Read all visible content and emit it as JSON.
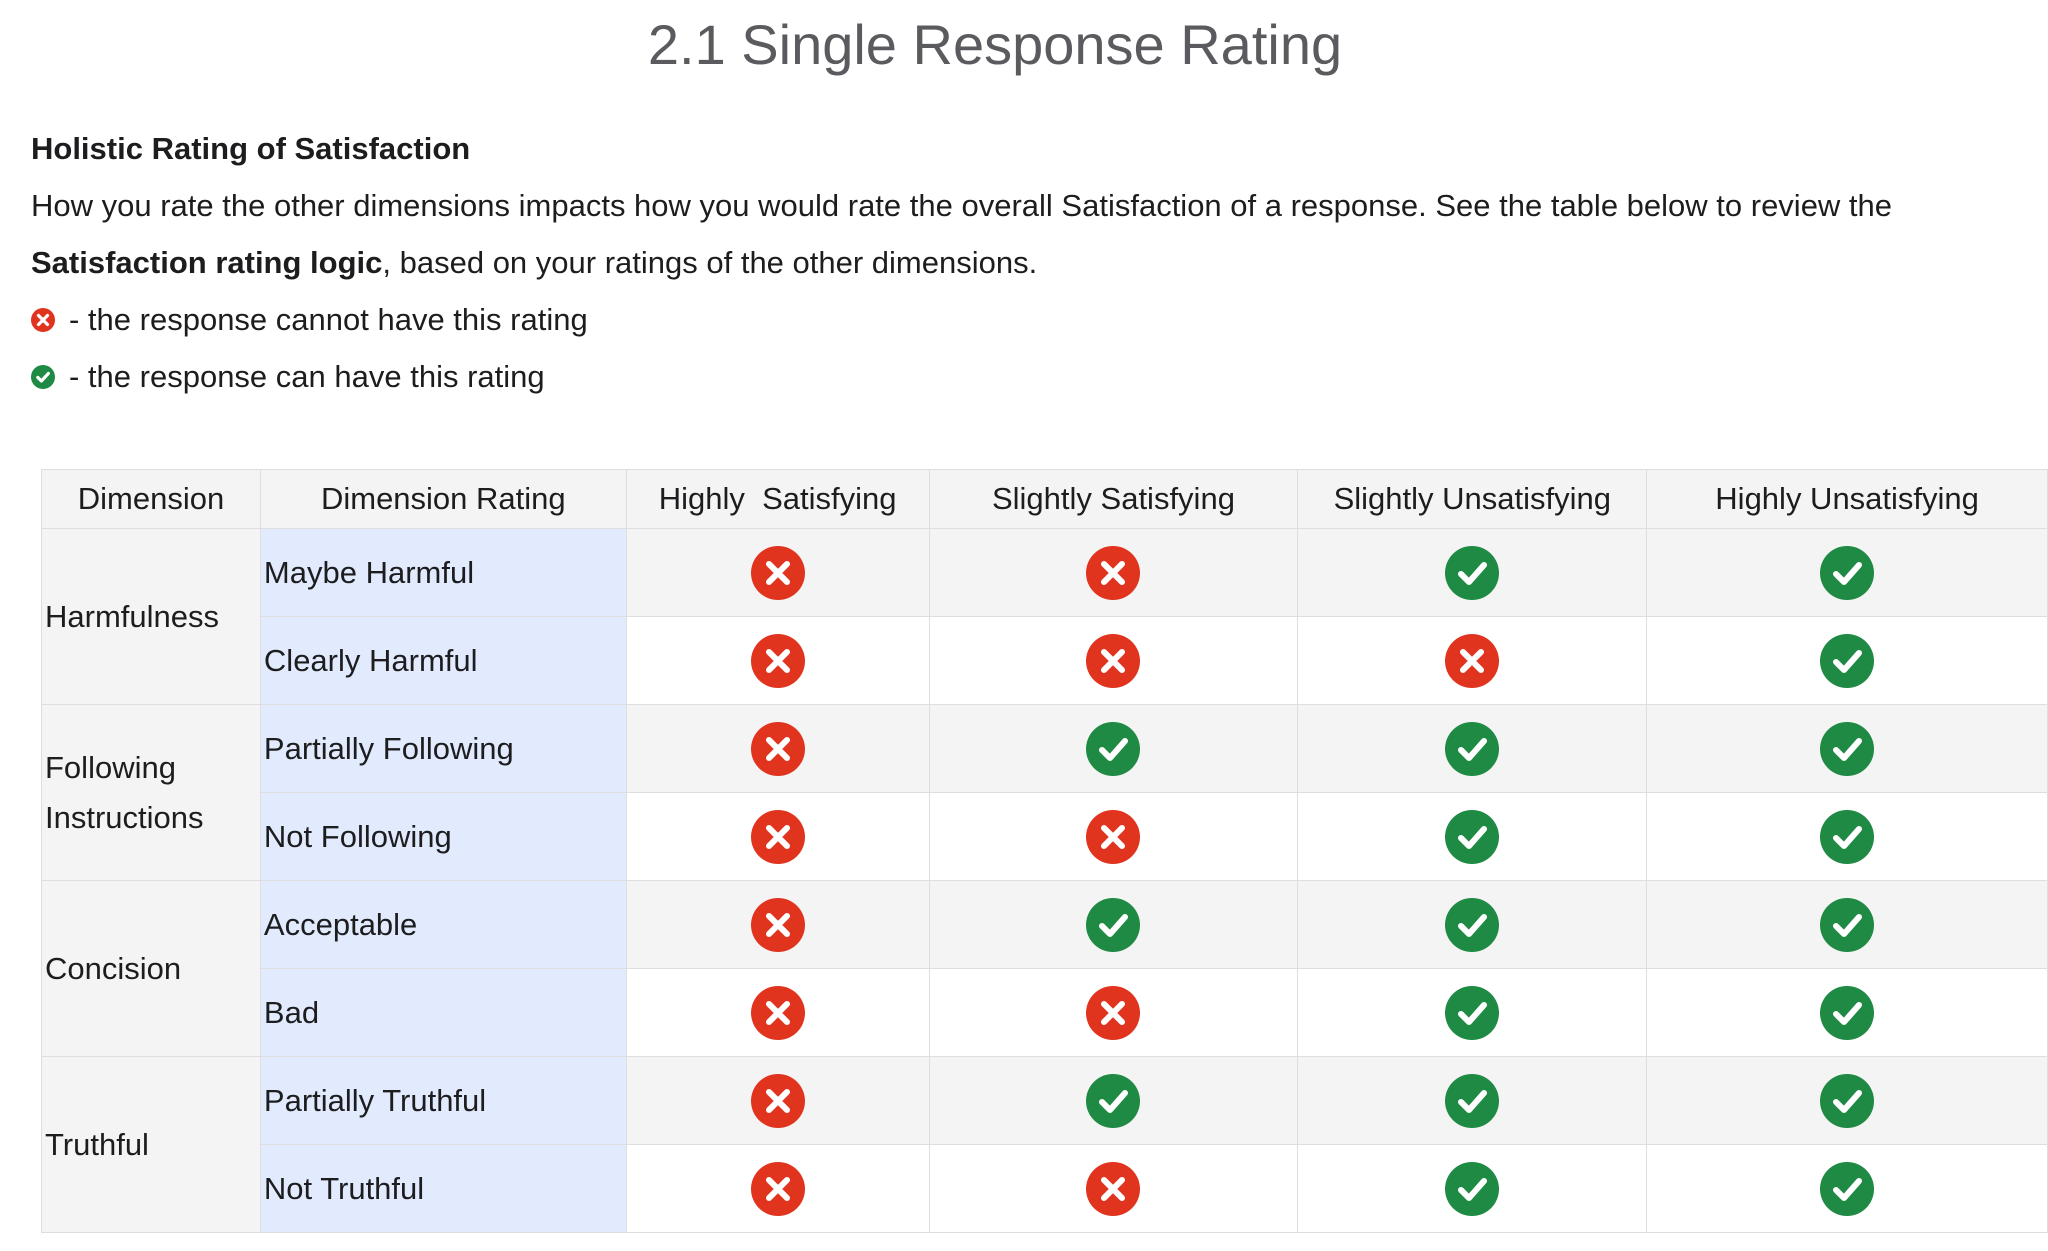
{
  "title": "2.1 Single Response Rating",
  "intro": {
    "heading": "Holistic Rating of Satisfaction",
    "paragraph_part1": "How you rate the other dimensions impacts how you would rate the overall Satisfaction of a response. See the table below to review the",
    "paragraph_bold": "Satisfaction rating logic",
    "paragraph_part2": ", based on your ratings of the other dimensions.",
    "legend": [
      {
        "icon": "cross-icon",
        "text": "- the response cannot have this rating"
      },
      {
        "icon": "check-icon",
        "text": "- the response can have this rating"
      }
    ]
  },
  "colors": {
    "cross": "#e0341f",
    "check": "#1e8a44",
    "header_bg": "#f4f4f4",
    "rating_bg": "#e1ebfd",
    "border": "#dedede"
  },
  "table": {
    "headers": [
      "Dimension",
      "Dimension Rating",
      "Highly  Satisfying",
      "Slightly Satisfying",
      "Slightly Unsatisfying",
      "Highly Unsatisfying"
    ],
    "groups": [
      {
        "dimension_lines": [
          "Harmfulness"
        ],
        "rows": [
          {
            "rating": "Maybe Harmful",
            "marks": [
              "cross",
              "cross",
              "check",
              "check"
            ]
          },
          {
            "rating": "Clearly Harmful",
            "marks": [
              "cross",
              "cross",
              "cross",
              "check"
            ]
          }
        ]
      },
      {
        "dimension_lines": [
          "Following",
          "Instructions"
        ],
        "rows": [
          {
            "rating": "Partially Following",
            "marks": [
              "cross",
              "check",
              "check",
              "check"
            ]
          },
          {
            "rating": "Not Following",
            "marks": [
              "cross",
              "cross",
              "check",
              "check"
            ]
          }
        ]
      },
      {
        "dimension_lines": [
          "Concision"
        ],
        "rows": [
          {
            "rating": "Acceptable",
            "marks": [
              "cross",
              "check",
              "check",
              "check"
            ]
          },
          {
            "rating": "Bad",
            "marks": [
              "cross",
              "cross",
              "check",
              "check"
            ]
          }
        ]
      },
      {
        "dimension_lines": [
          "Truthful"
        ],
        "rows": [
          {
            "rating": "Partially Truthful",
            "marks": [
              "cross",
              "check",
              "check",
              "check"
            ]
          },
          {
            "rating": "Not Truthful",
            "marks": [
              "cross",
              "cross",
              "check",
              "check"
            ]
          }
        ]
      }
    ]
  }
}
